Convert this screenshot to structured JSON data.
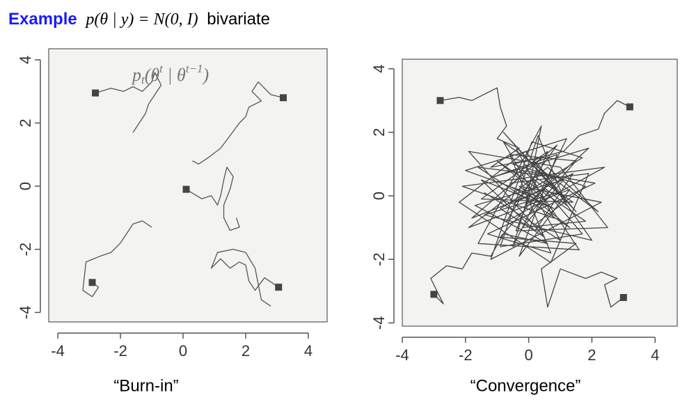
{
  "header": {
    "label": "Example",
    "formula": "p(θ | y) = N(0, I)",
    "suffix": "bivariate"
  },
  "chart_data": [
    {
      "type": "line",
      "caption": "“Burn-in”",
      "annotation": [
        "p",
        "t",
        "(θ",
        "t",
        " | θ",
        "t−1",
        ")"
      ],
      "xlim": [
        -4.29,
        4.6
      ],
      "ylim": [
        -4.3,
        4.35
      ],
      "xticks": [
        -4,
        -2,
        0,
        2,
        4
      ],
      "yticks": [
        -4,
        -2,
        0,
        2,
        4
      ],
      "start_marker": "square",
      "series": [
        {
          "color": "#555555",
          "x": [
            -2.8,
            -2.3,
            -1.9,
            -1.6,
            -1.3,
            -1.0,
            -0.9,
            -0.7,
            -0.9,
            -1.1,
            -1.2,
            -1.4,
            -1.6
          ],
          "values": [
            2.95,
            3.1,
            3.0,
            3.15,
            3.0,
            3.3,
            3.6,
            3.2,
            2.9,
            2.6,
            2.3,
            2.0,
            1.7
          ]
        },
        {
          "color": "#555555",
          "x": [
            3.2,
            2.8,
            2.4,
            2.2,
            2.5,
            2.1,
            2.0,
            1.8,
            1.5,
            1.2,
            0.8,
            0.5,
            0.3
          ],
          "values": [
            2.8,
            2.9,
            3.3,
            3.0,
            2.7,
            2.5,
            2.2,
            2.0,
            1.6,
            1.2,
            0.9,
            0.7,
            0.8
          ]
        },
        {
          "color": "#555555",
          "x": [
            0.1,
            0.6,
            0.9,
            1.1,
            1.2,
            1.3,
            1.4,
            1.6,
            1.5,
            1.3,
            1.3,
            1.5,
            1.8,
            1.7
          ],
          "values": [
            -0.1,
            -0.4,
            -0.3,
            -0.6,
            -0.3,
            0.2,
            0.6,
            0.3,
            -0.1,
            -0.6,
            -1.0,
            -1.4,
            -1.3,
            -1.0
          ]
        },
        {
          "color": "#555555",
          "x": [
            -2.9,
            -2.7,
            -2.9,
            -3.2,
            -3.1,
            -2.6,
            -2.3,
            -2.0,
            -1.8,
            -1.6,
            -1.3,
            -1.0
          ],
          "values": [
            -3.05,
            -3.2,
            -3.5,
            -3.3,
            -2.4,
            -2.2,
            -2.1,
            -1.8,
            -1.5,
            -1.2,
            -1.1,
            -1.3
          ]
        },
        {
          "color": "#555555",
          "x": [
            3.05,
            2.6,
            2.3,
            2.1,
            2.0,
            1.8,
            1.5,
            1.2,
            0.9,
            1.1,
            1.6,
            2.0,
            2.3,
            2.5,
            2.8
          ],
          "values": [
            -3.2,
            -2.9,
            -3.3,
            -3.0,
            -2.5,
            -2.4,
            -2.6,
            -2.3,
            -2.6,
            -2.1,
            -2.0,
            -2.1,
            -2.6,
            -3.6,
            -3.8
          ]
        }
      ]
    },
    {
      "type": "line",
      "caption": "“Convergence”",
      "xlim": [
        -4,
        4.7
      ],
      "ylim": [
        -4.1,
        4.3
      ],
      "xticks": [
        -4,
        -2,
        0,
        2,
        4
      ],
      "yticks": [
        -4,
        -2,
        0,
        2,
        4
      ],
      "start_marker": "square",
      "series": [
        {
          "color": "#444444",
          "x": [
            -2.8,
            -2.2,
            -1.8,
            -1.4,
            -1.0,
            -0.9,
            -0.7,
            -1.0,
            -0.3,
            -1.2,
            0.4,
            -0.6,
            0.8,
            -1.5,
            0.2,
            1.4,
            -0.4,
            0.9,
            -1.8,
            0.5,
            1.7,
            -0.9,
            0.3,
            1.2,
            -0.2,
            2.1,
            -1.3,
            0.7,
            -0.6,
            1.5,
            0.0
          ],
          "values": [
            3.0,
            3.1,
            3.0,
            3.2,
            3.4,
            2.8,
            2.2,
            1.8,
            1.5,
            0.9,
            1.2,
            0.3,
            -0.4,
            0.5,
            -1.1,
            0.7,
            -0.2,
            1.6,
            -0.7,
            0.2,
            -1.2,
            -1.6,
            1.9,
            -0.3,
            0.8,
            0.4,
            -1.2,
            -1.8,
            1.3,
            1.1,
            -0.6
          ]
        },
        {
          "color": "#444444",
          "x": [
            3.2,
            2.8,
            2.4,
            2.2,
            1.6,
            1.1,
            -0.5,
            1.8,
            0.2,
            -1.4,
            1.0,
            -0.8,
            2.2,
            0.6,
            -1.9,
            1.3,
            -0.3,
            0.9,
            -1.1,
            1.9,
            -0.1,
            0.4,
            -1.6,
            1.6,
            0.1,
            -0.7,
            2.4,
            -2.1,
            0.8,
            -0.4
          ],
          "values": [
            2.8,
            3.0,
            2.6,
            2.1,
            1.9,
            1.4,
            1.0,
            0.3,
            -0.9,
            0.1,
            -1.4,
            1.7,
            -0.5,
            0.9,
            -1.0,
            0.2,
            -1.9,
            1.3,
            0.6,
            1.5,
            -0.3,
            2.2,
            -1.5,
            -1.7,
            0.5,
            -0.8,
            0.9,
            0.3,
            -0.7,
            1.5
          ]
        },
        {
          "color": "#444444",
          "x": [
            -3.0,
            -2.7,
            -3.1,
            -2.6,
            -2.1,
            -1.8,
            -1.2,
            -0.8,
            0.6,
            -1.7,
            1.1,
            -0.2,
            1.8,
            -1.0,
            0.5,
            -2.0,
            1.2,
            -0.5,
            0.3,
            2.0,
            -1.4,
            0.9,
            -0.8,
            1.5,
            -0.1,
            -2.2,
            0.7,
            1.9,
            -0.6
          ],
          "values": [
            -3.1,
            -3.4,
            -2.6,
            -2.2,
            -2.3,
            -1.8,
            -1.9,
            -1.2,
            -1.5,
            -0.3,
            0.5,
            -1.0,
            -0.8,
            1.1,
            -0.1,
            0.8,
            1.8,
            -1.6,
            1.0,
            -1.4,
            -0.6,
            0.1,
            2.0,
            -0.5,
            1.4,
            -0.2,
            -2.1,
            0.7,
            0.4
          ]
        },
        {
          "color": "#444444",
          "x": [
            3.0,
            2.6,
            2.4,
            2.8,
            2.3,
            1.8,
            1.0,
            0.6,
            0.4,
            1.5,
            -0.9,
            0.8,
            -1.6,
            1.3,
            -0.3,
            2.3,
            -1.2,
            0.1,
            1.7,
            -0.9,
            0.5,
            -1.9,
            1.0,
            2.5,
            -0.4,
            0.6,
            -1.5,
            1.4,
            0.2
          ],
          "values": [
            -3.2,
            -3.5,
            -2.8,
            -2.6,
            -2.4,
            -2.6,
            -2.3,
            -3.5,
            -2.3,
            -1.5,
            -1.3,
            0.6,
            0.9,
            -1.0,
            0.3,
            -0.2,
            -2.0,
            1.7,
            1.2,
            -0.4,
            -1.3,
            1.4,
            0.9,
            -1.0,
            -1.1,
            1.4,
            -0.1,
            -0.2,
            0.6
          ]
        }
      ]
    }
  ]
}
